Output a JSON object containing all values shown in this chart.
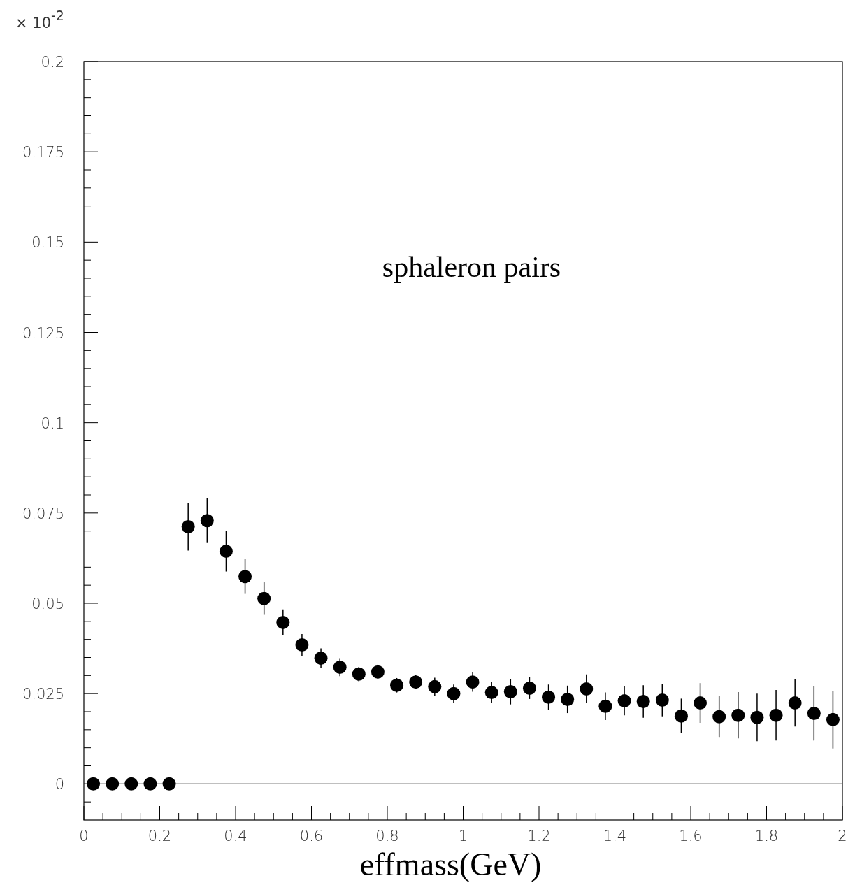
{
  "chart_data": {
    "type": "scatter",
    "xlabel": "effmass(GeV)",
    "annotations": [
      "× 10$^{-2}$",
      "sphaleron pairs"
    ],
    "x": [
      0.025,
      0.075,
      0.125,
      0.175,
      0.225,
      0.275,
      0.325,
      0.375,
      0.425,
      0.475,
      0.525,
      0.575,
      0.625,
      0.675,
      0.725,
      0.775,
      0.825,
      0.875,
      0.925,
      0.975,
      1.025,
      1.075,
      1.125,
      1.175,
      1.225,
      1.275,
      1.325,
      1.375,
      1.425,
      1.475,
      1.525,
      1.575,
      1.625,
      1.675,
      1.725,
      1.775,
      1.825,
      1.875,
      1.925,
      1.975
    ],
    "series": [
      {
        "color": "#000000",
        "values": [
          0,
          0,
          0,
          0,
          0,
          0.0712,
          0.0729,
          0.0644,
          0.0574,
          0.0513,
          0.0447,
          0.0385,
          0.0348,
          0.0323,
          0.0304,
          0.031,
          0.0273,
          0.0282,
          0.0269,
          0.025,
          0.0282,
          0.0253,
          0.0255,
          0.0265,
          0.024,
          0.0234,
          0.0263,
          0.0215,
          0.023,
          0.0228,
          0.0232,
          0.0188,
          0.0224,
          0.0186,
          0.019,
          0.0184,
          0.019,
          0.0224,
          0.0195,
          0.0178
        ],
        "errors": [
          0,
          0,
          0,
          0,
          0,
          0.0066,
          0.0062,
          0.0056,
          0.0048,
          0.0045,
          0.0036,
          0.003,
          0.0027,
          0.0025,
          0.002,
          0.002,
          0.002,
          0.002,
          0.0025,
          0.0025,
          0.0027,
          0.003,
          0.0035,
          0.003,
          0.0035,
          0.0038,
          0.004,
          0.0038,
          0.004,
          0.0045,
          0.0045,
          0.0048,
          0.0055,
          0.0058,
          0.0064,
          0.0066,
          0.007,
          0.0065,
          0.0075,
          0.008
        ]
      }
    ],
    "marker": "circle",
    "grid": false,
    "xlim": [
      0,
      2
    ],
    "ylim": [
      -0.01,
      0.2
    ],
    "xticks": [
      0,
      {
        "value": 0.05,
        "label": null
      },
      {
        "value": 0.1,
        "label": null
      },
      {
        "value": 0.15,
        "label": null
      },
      0.2,
      {
        "value": 0.25,
        "label": null
      },
      {
        "value": 0.3,
        "label": null
      },
      {
        "value": 0.35,
        "label": null
      },
      0.4,
      {
        "value": 0.45,
        "label": null
      },
      {
        "value": 0.5,
        "label": null
      },
      {
        "value": 0.55,
        "label": null
      },
      0.6,
      {
        "value": 0.65,
        "label": null
      },
      {
        "value": 0.7,
        "label": null
      },
      {
        "value": 0.75,
        "label": null
      },
      0.8,
      {
        "value": 0.85,
        "label": null
      },
      {
        "value": 0.9,
        "label": null
      },
      {
        "value": 0.95,
        "label": null
      },
      1,
      {
        "value": 1.05,
        "label": null
      },
      {
        "value": 1.1,
        "label": null
      },
      {
        "value": 1.15,
        "label": null
      },
      1.2,
      {
        "value": 1.25,
        "label": null
      },
      {
        "value": 1.3,
        "label": null
      },
      {
        "value": 1.35,
        "label": null
      },
      1.4,
      {
        "value": 1.45,
        "label": null
      },
      {
        "value": 1.5,
        "label": null
      },
      {
        "value": 1.55,
        "label": null
      },
      1.6,
      {
        "value": 1.65,
        "label": null
      },
      {
        "value": 1.7,
        "label": null
      },
      {
        "value": 1.75,
        "label": null
      },
      1.8,
      {
        "value": 1.85,
        "label": null
      },
      {
        "value": 1.9,
        "label": null
      },
      {
        "value": 1.95,
        "label": null
      },
      2
    ],
    "yticks": [
      {
        "value": -0.005,
        "label": null
      },
      0,
      {
        "value": 0.005,
        "label": null
      },
      {
        "value": 0.01,
        "label": null
      },
      {
        "value": 0.015,
        "label": null
      },
      {
        "value": 0.02,
        "label": null
      },
      0.025,
      {
        "value": 0.03,
        "label": null
      },
      {
        "value": 0.035,
        "label": null
      },
      {
        "value": 0.04,
        "label": null
      },
      {
        "value": 0.045,
        "label": null
      },
      0.05,
      {
        "value": 0.055,
        "label": null
      },
      {
        "value": 0.06,
        "label": null
      },
      {
        "value": 0.065,
        "label": null
      },
      {
        "value": 0.07,
        "label": null
      },
      0.075,
      {
        "value": 0.08,
        "label": null
      },
      {
        "value": 0.085,
        "label": null
      },
      {
        "value": 0.09,
        "label": null
      },
      {
        "value": 0.095,
        "label": null
      },
      0.1,
      {
        "value": 0.105,
        "label": null
      },
      {
        "value": 0.11,
        "label": null
      },
      {
        "value": 0.115,
        "label": null
      },
      {
        "value": 0.12,
        "label": null
      },
      0.125,
      {
        "value": 0.13,
        "label": null
      },
      {
        "value": 0.135,
        "label": null
      },
      {
        "value": 0.14,
        "label": null
      },
      {
        "value": 0.145,
        "label": null
      },
      0.15,
      {
        "value": 0.155,
        "label": null
      },
      {
        "value": 0.16,
        "label": null
      },
      {
        "value": 0.165,
        "label": null
      },
      {
        "value": 0.17,
        "label": null
      },
      0.175,
      {
        "value": 0.18,
        "label": null
      },
      {
        "value": 0.185,
        "label": null
      },
      {
        "value": 0.19,
        "label": null
      },
      {
        "value": 0.195,
        "label": null
      },
      0.2
    ],
    "ref_lines": [
      {
        "axis": "y",
        "value": 0,
        "color": "#000000",
        "line_style": "solid"
      }
    ]
  }
}
